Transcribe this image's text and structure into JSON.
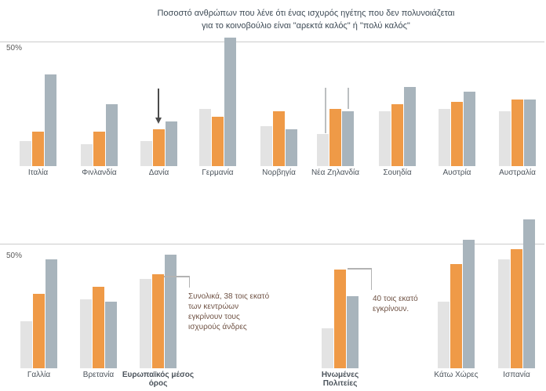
{
  "title": {
    "line1": "Ποσοστό ανθρώπων που λένε ότι ένας ισχυρός ηγέτης που δεν πολυνοιάζεται",
    "line2": "για το κοινοβούλιο είναι \"αρεκτά καλός\" ή \"πολύ καλός\""
  },
  "colors": {
    "bar_light": "#e3e3e3",
    "bar_orange": "#ef9a47",
    "bar_slate": "#a8b4bc",
    "gridline": "#cbcbcb",
    "annotation_text": "#6f5244",
    "arrow": "#4b4b4b"
  },
  "icons": {
    "dania_marker": "down-arrow",
    "nea_zilandia_markers": "leader-line"
  },
  "chart_data": {
    "type": "bar",
    "unit": "%",
    "gridline_label": "50%",
    "gridline_value": 50,
    "ylim": [
      0,
      62
    ],
    "grid": "single-line-at-50",
    "legend": "none",
    "series": [
      {
        "key": "light-gray",
        "color": "#e3e3e3"
      },
      {
        "key": "orange",
        "color": "#ef9a47"
      },
      {
        "key": "slate-gray",
        "color": "#a8b4bc"
      }
    ],
    "rows": [
      {
        "groups": [
          {
            "label": "Ιταλία",
            "values": [
              10,
              14,
              37
            ]
          },
          {
            "label": "Φινλανδία",
            "values": [
              9,
              14,
              25
            ]
          },
          {
            "label": "Δανία",
            "values": [
              10,
              15,
              18
            ],
            "marker": "down-arrow"
          },
          {
            "label": "Γερμανία",
            "values": [
              23,
              20,
              52
            ]
          },
          {
            "label": "Νορβηγία",
            "values": [
              16,
              22,
              15
            ]
          },
          {
            "label": "Νέα Ζηλανδία",
            "values": [
              13,
              23,
              22
            ],
            "marker": "leader-lines"
          },
          {
            "label": "Σουηδία",
            "values": [
              22,
              25,
              32
            ]
          },
          {
            "label": "Αυστρία",
            "values": [
              23,
              26,
              30
            ]
          },
          {
            "label": "Αυστραλία",
            "values": [
              22,
              27,
              27
            ]
          }
        ]
      },
      {
        "groups": [
          {
            "label": "Γαλλία",
            "values": [
              19,
              30,
              44
            ]
          },
          {
            "label": "Βρετανία",
            "values": [
              28,
              33,
              27
            ]
          },
          {
            "label": "Ευρωπαϊκός μέσος όρος",
            "values": [
              36,
              38,
              46
            ],
            "bold": true
          },
          {
            "label": "Ηνωμένες Πολιτείες",
            "values": [
              16,
              40,
              29
            ],
            "bold": true
          },
          {
            "label": "Κάτω Χώρες",
            "values": [
              27,
              42,
              52
            ]
          },
          {
            "label": "Ισπανία",
            "values": [
              44,
              48,
              60
            ]
          }
        ]
      }
    ],
    "annotations": [
      {
        "text": "Συνολικά, 38 τοις εκατό των κεντρώων εγκρίνουν τους ισχυρούς άνδρες",
        "value": 38,
        "target": "Ευρωπαϊκός μέσος όρος"
      },
      {
        "text": "40 τοις εκατό εγκρίνουν.",
        "value": 40,
        "target": "Ηνωμένες Πολιτείες"
      }
    ]
  }
}
